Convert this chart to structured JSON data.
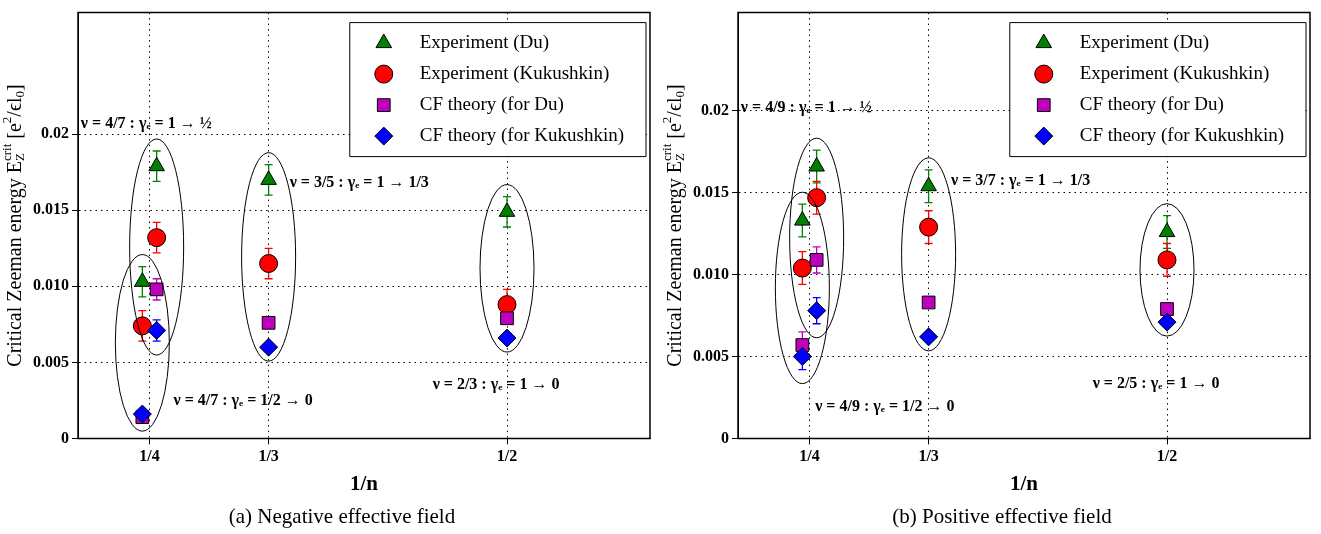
{
  "chart_data": [
    {
      "type": "scatter",
      "title": "(a) Negative effective field",
      "xlabel": "1/n",
      "ylabel": "Critical Zeeman energy E$_{Z}$$^{crit}$ [e$^{2}$/ϵl$_{0}$]",
      "xlim": [
        0.2,
        0.6
      ],
      "xticks": [
        {
          "value": 0.25,
          "label": "1/4"
        },
        {
          "value": 0.3333,
          "label": "1/3"
        },
        {
          "value": 0.5,
          "label": "1/2"
        }
      ],
      "ylim": [
        0,
        0.028
      ],
      "yticks": [
        {
          "value": 0,
          "label": "0"
        },
        {
          "value": 0.005,
          "label": "0.005"
        },
        {
          "value": 0.01,
          "label": "0.010"
        },
        {
          "value": 0.015,
          "label": "0.015"
        },
        {
          "value": 0.02,
          "label": "0.02"
        }
      ],
      "grid": true,
      "legend": "top right",
      "series": [
        {
          "name": "Experiment (Du)",
          "color": "#008000",
          "marker": "triangle",
          "x": [
            0.245,
            0.255,
            0.3333,
            0.5
          ],
          "values": [
            0.0103,
            0.0179,
            0.017,
            0.0149
          ],
          "errors": [
            0.001,
            0.001,
            0.001,
            0.001
          ]
        },
        {
          "name": "Experiment (Kukushkin)",
          "color": "#ff0000",
          "marker": "circle",
          "x": [
            0.245,
            0.255,
            0.3333,
            0.5
          ],
          "values": [
            0.0074,
            0.0132,
            0.0115,
            0.0088
          ],
          "errors": [
            0.001,
            0.001,
            0.001,
            0.001
          ]
        },
        {
          "name": "CF theory (for Du)",
          "color": "#bf00bf",
          "marker": "square",
          "x": [
            0.245,
            0.255,
            0.3333,
            0.5
          ],
          "values": [
            0.0014,
            0.0098,
            0.0076,
            0.0079
          ],
          "errors": [
            null,
            0.0007,
            null,
            null
          ]
        },
        {
          "name": "CF theory (for Kukushkin)",
          "color": "#0000ff",
          "marker": "diamond",
          "x": [
            0.245,
            0.255,
            0.3333,
            0.5
          ],
          "values": [
            0.0016,
            0.0071,
            0.006,
            0.0066
          ],
          "errors": [
            null,
            0.0007,
            null,
            null
          ]
        }
      ],
      "annotations": [
        "ν = 4/7 : γₑ = 1 → ½",
        "ν = 3/5 : γₑ = 1 → 1/3",
        "ν = 4/7 : γₑ = 1/2 → 0",
        "ν = 2/3 : γₑ = 1 → 0"
      ]
    },
    {
      "type": "scatter",
      "title": "(b) Positive effective field",
      "xlabel": "1/n",
      "ylabel": "Critical Zeeman energy E$_{Z}$$^{crit}$ [e$^{2}$/ϵl$_{0}$]",
      "xlim": [
        0.2,
        0.6
      ],
      "xticks": [
        {
          "value": 0.25,
          "label": "1/4"
        },
        {
          "value": 0.3333,
          "label": "1/3"
        },
        {
          "value": 0.5,
          "label": "1/2"
        }
      ],
      "ylim": [
        0,
        0.026
      ],
      "yticks": [
        {
          "value": 0,
          "label": "0"
        },
        {
          "value": 0.005,
          "label": "0.005"
        },
        {
          "value": 0.01,
          "label": "0.010"
        },
        {
          "value": 0.015,
          "label": "0.015"
        },
        {
          "value": 0.02,
          "label": "0.02"
        }
      ],
      "grid": true,
      "legend": "top right",
      "series": [
        {
          "name": "Experiment (Du)",
          "color": "#008000",
          "marker": "triangle",
          "x": [
            0.245,
            0.255,
            0.3333,
            0.5
          ],
          "values": [
            0.0133,
            0.0166,
            0.0154,
            0.0126
          ],
          "errors": [
            0.001,
            0.001,
            0.001,
            0.001
          ]
        },
        {
          "name": "Experiment (Kukushkin)",
          "color": "#ff0000",
          "marker": "circle",
          "x": [
            0.245,
            0.255,
            0.3333,
            0.5
          ],
          "values": [
            0.0104,
            0.0147,
            0.0129,
            0.0109
          ],
          "errors": [
            0.001,
            0.001,
            0.001,
            0.001
          ]
        },
        {
          "name": "CF theory (for Du)",
          "color": "#bf00bf",
          "marker": "square",
          "x": [
            0.245,
            0.255,
            0.3333,
            0.5
          ],
          "values": [
            0.0057,
            0.0109,
            0.0083,
            0.0079
          ],
          "errors": [
            0.0008,
            0.0008,
            null,
            null
          ]
        },
        {
          "name": "CF theory (for Kukushkin)",
          "color": "#0000ff",
          "marker": "diamond",
          "x": [
            0.245,
            0.255,
            0.3333,
            0.5
          ],
          "values": [
            0.005,
            0.0078,
            0.0062,
            0.0071
          ],
          "errors": [
            0.0008,
            0.0008,
            null,
            null
          ]
        }
      ],
      "annotations": [
        "ν = 4/9 : γₑ = 1 → ½",
        "ν = 3/7 : γₑ = 1 → 1/3",
        "ν = 4/9 : γₑ = 1/2 → 0",
        "ν = 2/5 : γₑ = 1 → 0"
      ]
    }
  ]
}
